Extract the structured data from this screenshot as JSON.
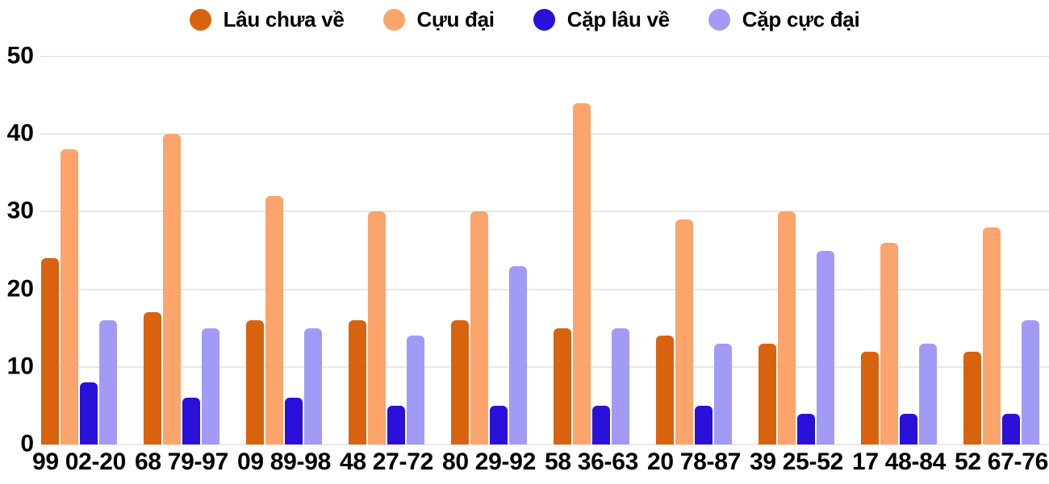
{
  "chart_data": {
    "type": "bar",
    "categories": [
      "99 02-20",
      "68 79-97",
      "09 89-98",
      "48 27-72",
      "80 29-92",
      "58 36-63",
      "20 78-87",
      "39 25-52",
      "17 48-84",
      "52 67-76"
    ],
    "series": [
      {
        "name": "Lâu chưa về",
        "color": "#d9620e",
        "values": [
          24,
          17,
          16,
          16,
          16,
          15,
          14,
          13,
          12,
          12
        ]
      },
      {
        "name": "Cựu đại",
        "color": "#fba46b",
        "values": [
          38,
          40,
          32,
          30,
          30,
          44,
          29,
          30,
          26,
          28
        ]
      },
      {
        "name": "Cặp lâu về",
        "color": "#2911d9",
        "values": [
          8,
          6,
          6,
          5,
          5,
          5,
          5,
          4,
          4,
          4
        ]
      },
      {
        "name": "Cặp cực đại",
        "color": "#a29bf5",
        "values": [
          16,
          15,
          15,
          14,
          23,
          15,
          13,
          25,
          13,
          16
        ]
      }
    ],
    "y_ticks": [
      0,
      10,
      20,
      30,
      40,
      50
    ],
    "ylim": [
      0,
      50
    ],
    "grid": true,
    "legend_position": "top",
    "legend_marker": "circle",
    "colors": {
      "grid": "#e8e8e8",
      "axis_text": "#000000",
      "background": "#ffffff"
    }
  }
}
